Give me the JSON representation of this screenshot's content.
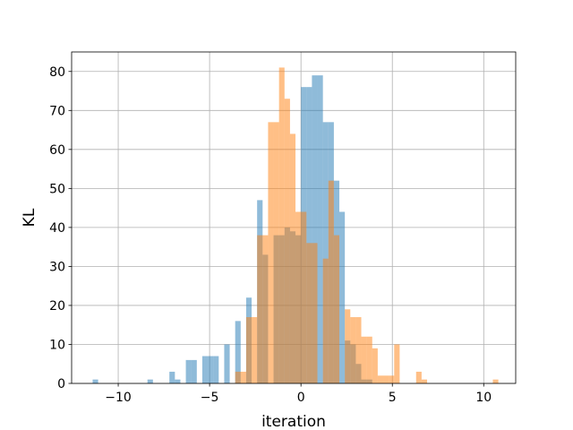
{
  "chart_data": {
    "type": "bar",
    "title": "",
    "xlabel": "iteration",
    "ylabel": "KL",
    "xlim": [
      -12.55,
      11.75
    ],
    "ylim": [
      0,
      85
    ],
    "grid": true,
    "legend": "none",
    "xticks": [
      -10,
      -5,
      0,
      5,
      10
    ],
    "xtick_labels": [
      "−10",
      "−5",
      "0",
      "5",
      "10"
    ],
    "yticks": [
      0,
      10,
      20,
      30,
      40,
      50,
      60,
      70,
      80
    ],
    "ytick_labels": [
      "0",
      "10",
      "20",
      "30",
      "40",
      "50",
      "60",
      "70",
      "80"
    ],
    "series": [
      {
        "color": "#1f77b4",
        "opacity": 0.5,
        "bin_width": 0.3,
        "bins": [
          [
            -11.4,
            1
          ],
          [
            -8.4,
            1
          ],
          [
            -7.2,
            3
          ],
          [
            -6.9,
            1
          ],
          [
            -6.3,
            6
          ],
          [
            -6.0,
            6
          ],
          [
            -5.4,
            7
          ],
          [
            -5.1,
            7
          ],
          [
            -4.8,
            7
          ],
          [
            -4.2,
            10
          ],
          [
            -3.6,
            16
          ],
          [
            -3.0,
            22
          ],
          [
            -2.4,
            47
          ],
          [
            -2.1,
            33
          ],
          [
            -1.5,
            38
          ],
          [
            -1.2,
            38
          ],
          [
            -0.9,
            40
          ],
          [
            -0.6,
            39
          ],
          [
            -0.3,
            38
          ],
          [
            0.0,
            76
          ],
          [
            0.3,
            76
          ],
          [
            0.6,
            79
          ],
          [
            0.9,
            79
          ],
          [
            1.2,
            67
          ],
          [
            1.5,
            67
          ],
          [
            1.8,
            52
          ],
          [
            2.1,
            44
          ],
          [
            2.4,
            11
          ],
          [
            2.7,
            10
          ],
          [
            3.0,
            5
          ],
          [
            3.3,
            1
          ],
          [
            3.6,
            1
          ]
        ]
      },
      {
        "color": "#ff7f0e",
        "opacity": 0.5,
        "bin_width": 0.3,
        "bins": [
          [
            -3.6,
            3
          ],
          [
            -3.3,
            3
          ],
          [
            -3.0,
            17
          ],
          [
            -2.7,
            17
          ],
          [
            -2.4,
            38
          ],
          [
            -2.1,
            38
          ],
          [
            -1.8,
            67
          ],
          [
            -1.5,
            67
          ],
          [
            -1.2,
            81
          ],
          [
            -0.9,
            73
          ],
          [
            -0.6,
            64
          ],
          [
            -0.3,
            44
          ],
          [
            0.0,
            44
          ],
          [
            0.3,
            36
          ],
          [
            0.6,
            36
          ],
          [
            1.2,
            32
          ],
          [
            1.5,
            52
          ],
          [
            1.8,
            38
          ],
          [
            2.4,
            19
          ],
          [
            2.7,
            17
          ],
          [
            3.0,
            17
          ],
          [
            3.3,
            12
          ],
          [
            3.6,
            12
          ],
          [
            3.9,
            9
          ],
          [
            4.2,
            2
          ],
          [
            4.5,
            2
          ],
          [
            4.8,
            2
          ],
          [
            5.1,
            10
          ],
          [
            6.3,
            3
          ],
          [
            6.6,
            1
          ],
          [
            10.5,
            1
          ]
        ]
      }
    ]
  }
}
